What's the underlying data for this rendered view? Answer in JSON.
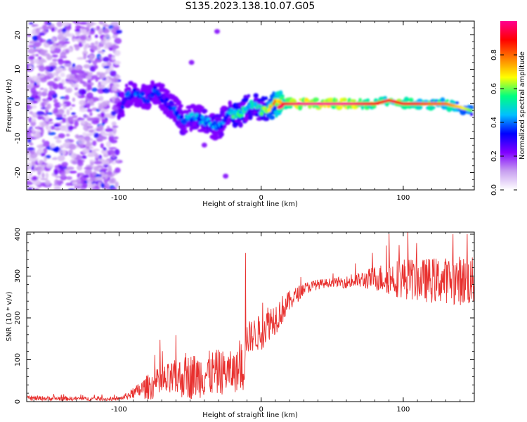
{
  "figure": {
    "title": "S135.2023.138.10.07.G05"
  },
  "chart_data": [
    {
      "type": "heatmap",
      "title": "S135.2023.138.10.07.G05",
      "xlabel": "Height of straight line (km)",
      "ylabel": "Frequency (Hz)",
      "xlim": [
        -165,
        150
      ],
      "ylim": [
        -25,
        24
      ],
      "x_ticks": [
        -100,
        0,
        100
      ],
      "y_ticks": [
        -20,
        -10,
        0,
        10,
        20
      ],
      "colorbar": {
        "label": "Normalized spectral amplitude",
        "range": [
          0,
          1
        ],
        "ticks": [
          0.0,
          0.2,
          0.4,
          0.6,
          0.8
        ],
        "colors": [
          "#ffffff",
          "#c8a0f0",
          "#8000ff",
          "#0000ff",
          "#00c0ff",
          "#00ff80",
          "#ffff00",
          "#ff8000",
          "#ff0000",
          "#ff0090"
        ]
      },
      "noise_region": {
        "x_range": [
          -165,
          -100
        ],
        "y_range": [
          -25,
          24
        ],
        "amplitude": 0.15
      },
      "ridge": {
        "x": [
          -100,
          -95,
          -90,
          -85,
          -80,
          -75,
          -70,
          -65,
          -60,
          -55,
          -50,
          -45,
          -40,
          -35,
          -30,
          -25,
          -22,
          -20,
          -15,
          -10,
          -5,
          0,
          5,
          10,
          15,
          20,
          30,
          40,
          50,
          60,
          70,
          80,
          90,
          100,
          110,
          120,
          130,
          140,
          148
        ],
        "y": [
          -3,
          2,
          3,
          3,
          1,
          4,
          2,
          0,
          -2,
          -5,
          -4,
          -4,
          -5,
          -6,
          -7,
          -4,
          -2,
          -3,
          -3,
          -1,
          0,
          -2,
          -1,
          0,
          0,
          0,
          0,
          0,
          0,
          0,
          0,
          0,
          1,
          0,
          0,
          0,
          0,
          -1,
          -2
        ],
        "amplitude": [
          0.25,
          0.35,
          0.35,
          0.35,
          0.3,
          0.35,
          0.3,
          0.3,
          0.35,
          0.4,
          0.4,
          0.4,
          0.4,
          0.4,
          0.4,
          0.35,
          0.4,
          0.5,
          0.5,
          0.5,
          0.5,
          0.5,
          0.6,
          0.7,
          0.85,
          0.95,
          1.0,
          1.0,
          1.0,
          1.0,
          0.95,
          0.9,
          0.85,
          0.9,
          0.85,
          0.8,
          0.8,
          0.7,
          0.6
        ]
      },
      "scatter_blobs": [
        {
          "x": -31,
          "y": 21
        },
        {
          "x": -49,
          "y": 12
        },
        {
          "x": -40,
          "y": -12
        },
        {
          "x": -25,
          "y": -21
        }
      ]
    },
    {
      "type": "line",
      "xlabel": "Height of straight line (km)",
      "ylabel": "SNR (10 * v/v)",
      "xlim": [
        -165,
        150
      ],
      "ylim": [
        0,
        405
      ],
      "x_ticks": [
        -100,
        0,
        100
      ],
      "y_ticks": [
        0,
        100,
        200,
        300,
        400
      ],
      "color": "#e8302e",
      "envelope": {
        "x": [
          -165,
          -100,
          -90,
          -80,
          -70,
          -60,
          -50,
          -40,
          -30,
          -20,
          -15,
          -12,
          -11,
          -10,
          -5,
          0,
          5,
          10,
          15,
          20,
          30,
          40,
          50,
          60,
          70,
          80,
          90,
          100,
          110,
          120,
          130,
          140,
          150
        ],
        "mean": [
          8,
          6,
          20,
          35,
          45,
          55,
          60,
          65,
          70,
          70,
          75,
          80,
          160,
          150,
          160,
          165,
          190,
          200,
          220,
          240,
          270,
          280,
          285,
          285,
          290,
          295,
          295,
          295,
          290,
          290,
          290,
          290,
          285
        ],
        "spread": [
          6,
          4,
          12,
          30,
          40,
          45,
          55,
          55,
          55,
          50,
          50,
          60,
          40,
          40,
          40,
          45,
          45,
          40,
          35,
          25,
          15,
          12,
          10,
          15,
          20,
          30,
          40,
          50,
          50,
          55,
          55,
          60,
          60
        ]
      },
      "peaks": [
        {
          "x": -11,
          "y": 355
        },
        {
          "x": 90,
          "y": 400
        },
        {
          "x": 135,
          "y": 400
        },
        {
          "x": 145,
          "y": 400
        },
        {
          "x": 150,
          "y": 395
        }
      ]
    }
  ]
}
